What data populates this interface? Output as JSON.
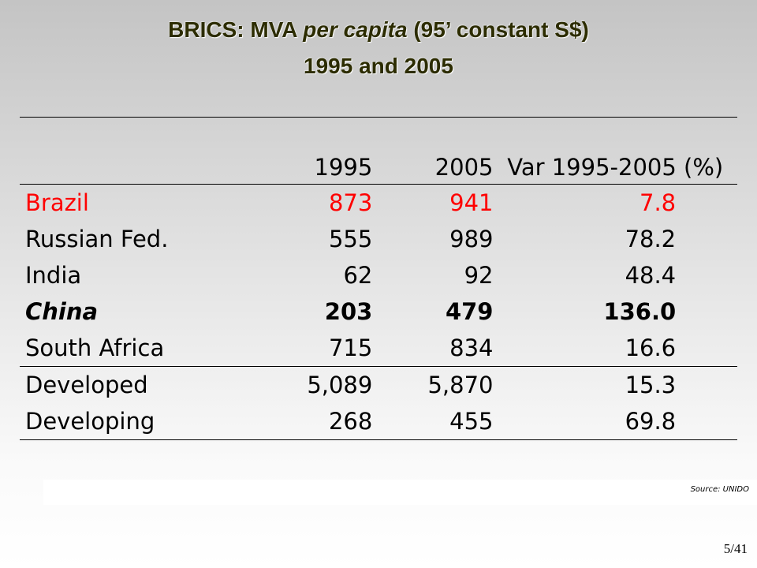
{
  "title": {
    "prefix": "BRICS: MVA ",
    "italic": "per capita",
    "suffix": " (95’ constant S$)",
    "line2": "1995 and 2005"
  },
  "table": {
    "headers": [
      "",
      "1995",
      "2005",
      "Var 1995-2005 (%)"
    ],
    "rows": [
      {
        "name": "Brazil",
        "v1995": "873",
        "v2005": "941",
        "var": "7.8"
      },
      {
        "name": "Russian Fed.",
        "v1995": "555",
        "v2005": "989",
        "var": "78.2"
      },
      {
        "name": "India",
        "v1995": "62",
        "v2005": "92",
        "var": "48.4"
      },
      {
        "name": "China",
        "v1995": "203",
        "v2005": "479",
        "var": "136.0"
      },
      {
        "name": "South Africa",
        "v1995": "715",
        "v2005": "834",
        "var": "16.6"
      },
      {
        "name": "Developed",
        "v1995": "5,089",
        "v2005": "5,870",
        "var": "15.3"
      },
      {
        "name": "Developing",
        "v1995": "268",
        "v2005": "455",
        "var": "69.8"
      }
    ]
  },
  "colors": {
    "highlight_row": "#ff0000",
    "title_text": "#2c2c00"
  },
  "source": "Source: UNIDO",
  "page_number": "5/41"
}
